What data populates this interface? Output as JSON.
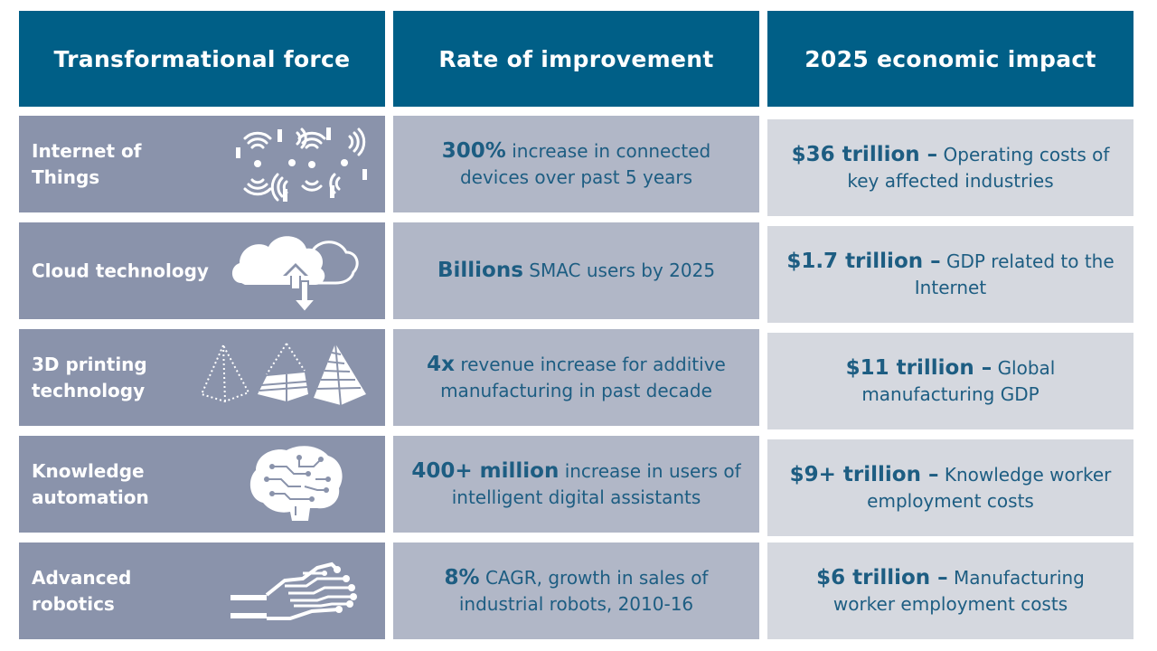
{
  "headers": {
    "force": "Transformational force",
    "rate": "Rate of improvement",
    "impact": "2025 economic impact"
  },
  "rows": [
    {
      "force": "Internet of Things",
      "icon": "iot-signal-icon",
      "rate_highlight": "300%",
      "rate_text": "increase in connected devices over past 5 years",
      "impact_highlight": "$36 trillion –",
      "impact_text": "Operating costs of key affected industries"
    },
    {
      "force": "Cloud technology",
      "icon": "cloud-upload-download-icon",
      "rate_highlight": "Billions",
      "rate_text": "SMAC users by 2025",
      "impact_highlight": "$1.7 trillion –",
      "impact_text": "GDP related to the Internet"
    },
    {
      "force": "3D printing technology",
      "icon": "3d-pyramids-icon",
      "rate_highlight": "4x",
      "rate_text": "revenue increase for additive manufacturing in past decade",
      "impact_highlight": "$11 trillion –",
      "impact_text": "Global manufacturing GDP"
    },
    {
      "force": "Knowledge automation",
      "icon": "circuit-brain-icon",
      "rate_highlight": "400+ million",
      "rate_text": "increase in users of intelligent digital assistants",
      "impact_highlight": "$9+ trillion –",
      "impact_text": "Knowledge worker employment costs"
    },
    {
      "force": "Advanced robotics",
      "icon": "robotic-hand-icon",
      "rate_highlight": "8%",
      "rate_text": "CAGR, growth in sales of industrial robots, 2010-16",
      "impact_highlight": "$6 trillion –",
      "impact_text": "Manufacturing worker employment costs"
    }
  ]
}
